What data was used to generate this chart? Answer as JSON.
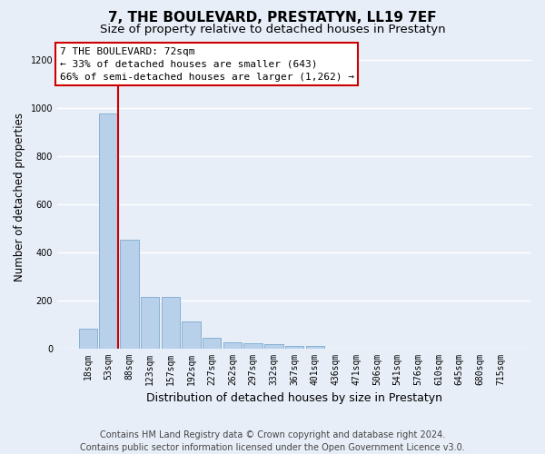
{
  "title": "7, THE BOULEVARD, PRESTATYN, LL19 7EF",
  "subtitle": "Size of property relative to detached houses in Prestatyn",
  "xlabel": "Distribution of detached houses by size in Prestatyn",
  "ylabel": "Number of detached properties",
  "bar_labels": [
    "18sqm",
    "53sqm",
    "88sqm",
    "123sqm",
    "157sqm",
    "192sqm",
    "227sqm",
    "262sqm",
    "297sqm",
    "332sqm",
    "367sqm",
    "401sqm",
    "436sqm",
    "471sqm",
    "506sqm",
    "541sqm",
    "576sqm",
    "610sqm",
    "645sqm",
    "680sqm",
    "715sqm"
  ],
  "bar_values": [
    80,
    975,
    450,
    215,
    215,
    110,
    45,
    25,
    20,
    18,
    10,
    8,
    0,
    0,
    0,
    0,
    0,
    0,
    0,
    0,
    0
  ],
  "bar_color": "#b8d0ea",
  "bar_edge_color": "#6a9fc8",
  "bar_edge_width": 0.5,
  "vline_color": "#cc0000",
  "ylim_max": 1260,
  "yticks": [
    0,
    200,
    400,
    600,
    800,
    1000,
    1200
  ],
  "annotation_title": "7 THE BOULEVARD: 72sqm",
  "annotation_line1": "← 33% of detached houses are smaller (643)",
  "annotation_line2": "66% of semi-detached houses are larger (1,262) →",
  "annotation_facecolor": "#ffffff",
  "annotation_edgecolor": "#cc0000",
  "footer1": "Contains HM Land Registry data © Crown copyright and database right 2024.",
  "footer2": "Contains public sector information licensed under the Open Government Licence v3.0.",
  "bg_color": "#e8eef8",
  "grid_color": "#ffffff",
  "title_fontsize": 11,
  "subtitle_fontsize": 9.5,
  "ylabel_fontsize": 8.5,
  "xlabel_fontsize": 9,
  "tick_fontsize": 7,
  "annot_fontsize": 8,
  "footer_fontsize": 7
}
